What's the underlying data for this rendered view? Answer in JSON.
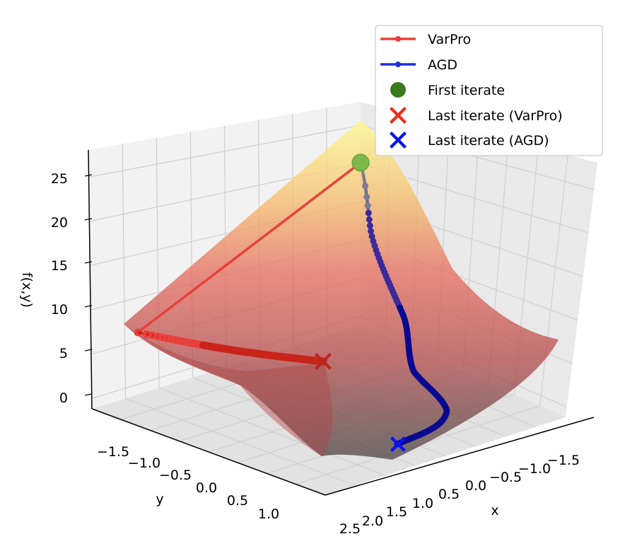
{
  "chart_data": {
    "type": "surface3d",
    "xlabel": "x",
    "ylabel": "y",
    "zlabel": "f(x,y)",
    "x_ticks": [
      "2.5",
      "2.0",
      "1.5",
      "1.0",
      "0.5",
      "0.0",
      "−0.5",
      "−1.0",
      "−1.5"
    ],
    "y_ticks": [
      "−1.5",
      "−1.0",
      "−0.5",
      "0.0",
      "0.5",
      "1.0"
    ],
    "z_ticks": [
      "25",
      "20",
      "15",
      "10",
      "5",
      "0"
    ],
    "z_range": [
      0,
      25
    ],
    "grid": true,
    "legend_position": "top-right",
    "legend": [
      {
        "label": "VarPro",
        "color": "#e8403a",
        "marker": "line-dot"
      },
      {
        "label": "AGD",
        "color": "#1f2ee0",
        "marker": "line-dot"
      },
      {
        "label": "First iterate",
        "color": "#3a7a1e",
        "marker": "circle"
      },
      {
        "label": "Last iterate (VarPro)",
        "color": "#e8301f",
        "marker": "x"
      },
      {
        "label": "Last iterate (AGD)",
        "color": "#0a14f0",
        "marker": "x"
      }
    ],
    "series": [
      {
        "name": "VarPro",
        "color": "#e8403a"
      },
      {
        "name": "AGD",
        "color": "#1f2ee0"
      }
    ],
    "surface_colormap": "hot"
  }
}
